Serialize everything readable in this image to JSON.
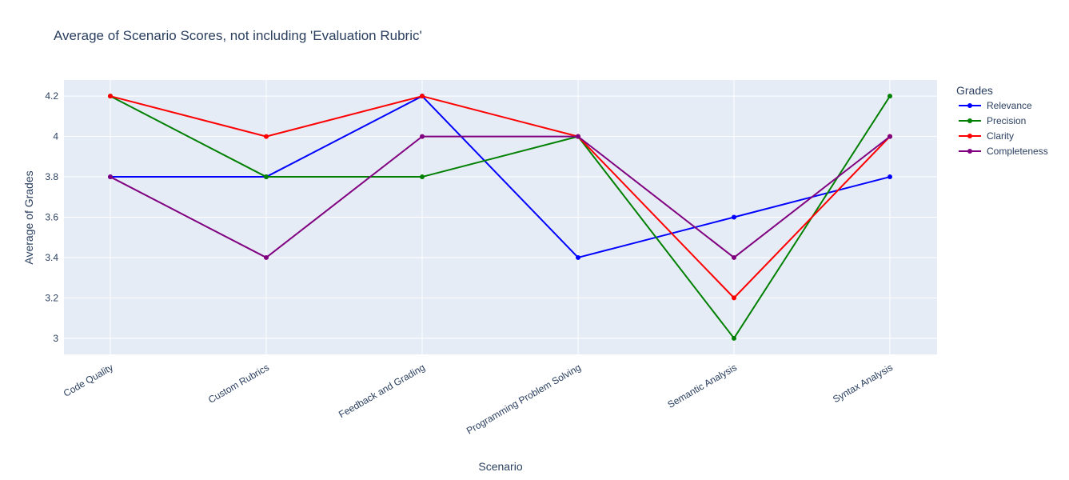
{
  "chart_data": {
    "type": "line",
    "title": "Average of Scenario Scores, not including 'Evaluation Rubric'",
    "xlabel": "Scenario",
    "ylabel": "Average of Grades",
    "categories": [
      "Code Quality",
      "Custom Rubrics",
      "Feedback and Grading",
      "Programming Problem Solving",
      "Semantic Analysis",
      "Syntax Analysis"
    ],
    "ylim": [
      2.92,
      4.28
    ],
    "yticks": [
      3,
      3.2,
      3.4,
      3.6,
      3.8,
      4,
      4.2
    ],
    "ytick_labels": [
      "3",
      "3.2",
      "3.4",
      "3.6",
      "3.8",
      "4",
      "4.2"
    ],
    "grid": true,
    "legend": {
      "title": "Grades",
      "placement": "right"
    },
    "series": [
      {
        "name": "Relevance",
        "color": "#0000ff",
        "values": [
          3.8,
          3.8,
          4.2,
          3.4,
          3.6,
          3.8
        ]
      },
      {
        "name": "Precision",
        "color": "#008000",
        "values": [
          4.2,
          3.8,
          3.8,
          4.0,
          3.0,
          4.2
        ]
      },
      {
        "name": "Clarity",
        "color": "#ff0000",
        "values": [
          4.2,
          4.0,
          4.2,
          4.0,
          3.2,
          4.0
        ]
      },
      {
        "name": "Completeness",
        "color": "#800080",
        "values": [
          3.8,
          3.4,
          4.0,
          4.0,
          3.4,
          4.0
        ]
      }
    ]
  }
}
